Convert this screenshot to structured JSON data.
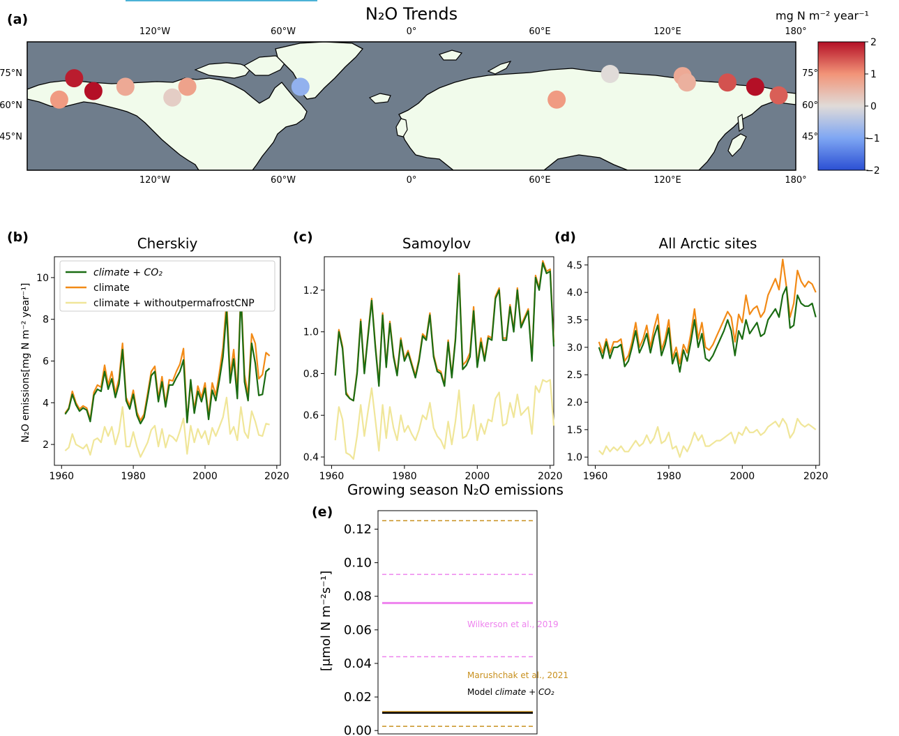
{
  "panel_a": {
    "letter": "(a)",
    "title": "N₂O Trends",
    "lon_labels": [
      "120°W",
      "60°W",
      "0°",
      "60°E",
      "120°E",
      "180°"
    ],
    "lat_labels_left": [
      "75°N",
      "60°N",
      "45°N"
    ],
    "lat_labels_right": [
      "75°",
      "60°",
      "45°"
    ],
    "colorbar_title": "mg N m⁻² year⁻¹",
    "colorbar_ticks": [
      "2",
      "1",
      "0",
      "−1",
      "−2"
    ],
    "colors": {
      "ocean": "#6f7d8c",
      "land": "#f1fbeb"
    }
  },
  "chart_data": [
    {
      "id": "cherskiy",
      "type": "line",
      "letter": "(b)",
      "title": "Cherskiy",
      "ylabel": "N₂O emissions[mg N m⁻² year⁻¹]",
      "xlim": [
        1958,
        2021
      ],
      "ylim": [
        1.0,
        11.0
      ],
      "xticks": [
        1960,
        1980,
        2000,
        2020
      ],
      "yticks": [
        2,
        4,
        6,
        8,
        10
      ],
      "legend": {
        "placement": "top-left",
        "entries": [
          "climate + CO₂",
          "climate",
          "climate + withoutpermafrostCNP"
        ]
      },
      "x_start": 1961,
      "series": [
        {
          "name": "climate + CO₂",
          "color": "#1a6b12",
          "values": [
            3.45,
            3.7,
            4.4,
            3.9,
            3.6,
            3.75,
            3.65,
            3.1,
            4.35,
            4.65,
            4.55,
            5.5,
            4.65,
            5.15,
            4.25,
            4.9,
            6.55,
            4.1,
            3.7,
            4.4,
            3.4,
            3.0,
            3.3,
            4.25,
            5.3,
            5.5,
            4.05,
            5.0,
            3.8,
            4.85,
            4.85,
            5.2,
            5.5,
            6.05,
            3.05,
            5.1,
            3.5,
            4.55,
            4.05,
            4.7,
            3.2,
            4.6,
            4.1,
            5.1,
            6.2,
            8.4,
            4.95,
            6.1,
            4.2,
            9.2,
            5.0,
            4.1,
            6.85,
            5.9,
            4.35,
            4.4,
            5.5,
            5.65
          ]
        },
        {
          "name": "climate",
          "color": "#f28a16",
          "values": [
            3.5,
            3.75,
            4.55,
            4.0,
            3.7,
            3.85,
            3.75,
            3.2,
            4.5,
            4.85,
            4.75,
            5.8,
            4.85,
            5.5,
            4.45,
            5.15,
            6.85,
            4.25,
            3.85,
            4.6,
            3.55,
            3.15,
            3.45,
            4.45,
            5.5,
            5.75,
            4.2,
            5.25,
            3.95,
            5.1,
            5.05,
            5.5,
            5.85,
            6.6,
            3.15,
            4.9,
            3.7,
            4.8,
            4.25,
            4.95,
            3.35,
            4.95,
            4.35,
            5.45,
            6.65,
            8.9,
            5.25,
            6.55,
            4.5,
            9.4,
            5.35,
            4.35,
            7.3,
            6.85,
            5.15,
            5.35,
            6.4,
            6.25
          ]
        },
        {
          "name": "climate + withoutpermafrostCNP",
          "color": "#f0e699",
          "values": [
            1.7,
            1.85,
            2.5,
            2.0,
            1.9,
            1.8,
            2.0,
            1.5,
            2.2,
            2.3,
            2.1,
            2.85,
            2.4,
            2.85,
            2.0,
            2.6,
            3.8,
            1.9,
            1.9,
            2.6,
            1.9,
            1.4,
            1.75,
            2.1,
            2.7,
            2.9,
            1.9,
            2.75,
            1.85,
            2.45,
            2.35,
            2.15,
            2.65,
            3.25,
            1.55,
            2.9,
            2.1,
            2.75,
            2.3,
            2.65,
            2.0,
            2.8,
            2.4,
            2.85,
            3.3,
            4.25,
            2.5,
            2.85,
            2.2,
            3.8,
            2.6,
            2.3,
            3.6,
            3.1,
            2.45,
            2.4,
            3.0,
            2.95
          ]
        }
      ]
    },
    {
      "id": "samoylov",
      "type": "line",
      "letter": "(c)",
      "title": "Samoylov",
      "xlim": [
        1958,
        2021
      ],
      "ylim": [
        0.36,
        1.36
      ],
      "xticks": [
        1960,
        1980,
        2000,
        2020
      ],
      "yticks": [
        0.4,
        0.6,
        0.8,
        1.0,
        1.2
      ],
      "x_start": 1961,
      "series": [
        {
          "name": "climate + CO₂",
          "color": "#1a6b12",
          "values": [
            0.79,
            1.0,
            0.92,
            0.7,
            0.68,
            0.67,
            0.8,
            1.05,
            0.8,
            0.98,
            1.15,
            0.93,
            0.74,
            1.08,
            0.83,
            1.04,
            0.88,
            0.79,
            0.96,
            0.86,
            0.9,
            0.84,
            0.78,
            0.86,
            0.98,
            0.96,
            1.08,
            0.88,
            0.81,
            0.8,
            0.74,
            0.95,
            0.78,
            0.96,
            1.27,
            0.82,
            0.84,
            0.88,
            1.1,
            0.83,
            0.95,
            0.86,
            0.97,
            0.96,
            1.16,
            1.2,
            0.96,
            0.96,
            1.12,
            1.0,
            1.2,
            1.02,
            1.06,
            1.1,
            0.86,
            1.26,
            1.2,
            1.33,
            1.28,
            1.29,
            0.93
          ]
        },
        {
          "name": "climate",
          "color": "#f28a16",
          "values": [
            0.8,
            1.01,
            0.93,
            0.71,
            0.68,
            0.67,
            0.81,
            1.06,
            0.81,
            0.99,
            1.16,
            0.94,
            0.75,
            1.09,
            0.84,
            1.05,
            0.89,
            0.8,
            0.97,
            0.87,
            0.91,
            0.85,
            0.79,
            0.87,
            0.99,
            0.97,
            1.09,
            0.89,
            0.82,
            0.81,
            0.75,
            0.96,
            0.79,
            0.97,
            1.28,
            0.84,
            0.86,
            0.9,
            1.12,
            0.84,
            0.97,
            0.87,
            0.98,
            0.97,
            1.17,
            1.21,
            0.97,
            0.97,
            1.13,
            1.01,
            1.21,
            1.03,
            1.07,
            1.11,
            0.87,
            1.27,
            1.21,
            1.34,
            1.29,
            1.3,
            0.95
          ]
        },
        {
          "name": "climate + withoutpermafrostCNP",
          "color": "#f0e699",
          "values": [
            0.48,
            0.64,
            0.58,
            0.42,
            0.41,
            0.39,
            0.5,
            0.65,
            0.5,
            0.62,
            0.73,
            0.58,
            0.43,
            0.65,
            0.49,
            0.64,
            0.54,
            0.48,
            0.6,
            0.52,
            0.55,
            0.51,
            0.48,
            0.53,
            0.6,
            0.58,
            0.66,
            0.54,
            0.5,
            0.48,
            0.44,
            0.57,
            0.46,
            0.57,
            0.72,
            0.49,
            0.5,
            0.54,
            0.65,
            0.48,
            0.56,
            0.51,
            0.58,
            0.57,
            0.68,
            0.71,
            0.55,
            0.56,
            0.66,
            0.59,
            0.7,
            0.6,
            0.62,
            0.64,
            0.51,
            0.74,
            0.71,
            0.77,
            0.76,
            0.77,
            0.55
          ]
        }
      ]
    },
    {
      "id": "all_arctic",
      "type": "line",
      "letter": "(d)",
      "title": "All Arctic sites",
      "xlim": [
        1958,
        2021
      ],
      "ylim": [
        0.85,
        4.65
      ],
      "xticks": [
        1960,
        1980,
        2000,
        2020
      ],
      "yticks": [
        1.0,
        1.5,
        2.0,
        2.5,
        3.0,
        3.5,
        4.0,
        4.5
      ],
      "x_start": 1961,
      "series": [
        {
          "name": "climate + CO₂",
          "color": "#1a6b12",
          "values": [
            3.0,
            2.8,
            3.1,
            2.8,
            3.0,
            3.0,
            3.05,
            2.65,
            2.75,
            3.0,
            3.3,
            2.9,
            3.05,
            3.25,
            2.9,
            3.2,
            3.4,
            2.85,
            3.05,
            3.35,
            2.7,
            2.9,
            2.55,
            2.95,
            2.75,
            3.1,
            3.5,
            3.0,
            3.25,
            2.8,
            2.75,
            2.85,
            3.0,
            3.15,
            3.3,
            3.5,
            3.3,
            2.85,
            3.3,
            3.15,
            3.5,
            3.25,
            3.35,
            3.45,
            3.2,
            3.25,
            3.5,
            3.6,
            3.7,
            3.55,
            3.95,
            4.1,
            3.35,
            3.4,
            3.95,
            3.8,
            3.75,
            3.75,
            3.8,
            3.55
          ]
        },
        {
          "name": "climate",
          "color": "#f28a16",
          "values": [
            3.1,
            2.9,
            3.15,
            2.9,
            3.1,
            3.1,
            3.15,
            2.75,
            2.85,
            3.1,
            3.45,
            3.0,
            3.15,
            3.4,
            3.0,
            3.35,
            3.6,
            2.95,
            3.15,
            3.5,
            2.8,
            3.0,
            2.7,
            3.05,
            2.9,
            3.25,
            3.7,
            3.15,
            3.45,
            3.0,
            2.95,
            3.05,
            3.2,
            3.35,
            3.5,
            3.65,
            3.55,
            3.1,
            3.6,
            3.45,
            3.95,
            3.6,
            3.7,
            3.75,
            3.55,
            3.65,
            3.95,
            4.1,
            4.25,
            4.05,
            4.6,
            4.1,
            3.55,
            3.8,
            4.4,
            4.2,
            4.1,
            4.2,
            4.15,
            4.0
          ]
        },
        {
          "name": "climate + withoutpermafrostCNP",
          "color": "#f0e699",
          "values": [
            1.12,
            1.05,
            1.2,
            1.1,
            1.18,
            1.12,
            1.2,
            1.1,
            1.1,
            1.2,
            1.3,
            1.2,
            1.25,
            1.4,
            1.25,
            1.35,
            1.55,
            1.25,
            1.3,
            1.45,
            1.15,
            1.2,
            1.0,
            1.2,
            1.1,
            1.25,
            1.45,
            1.3,
            1.4,
            1.2,
            1.2,
            1.25,
            1.3,
            1.3,
            1.35,
            1.4,
            1.45,
            1.25,
            1.45,
            1.4,
            1.55,
            1.45,
            1.45,
            1.5,
            1.4,
            1.45,
            1.55,
            1.6,
            1.65,
            1.55,
            1.7,
            1.6,
            1.35,
            1.45,
            1.7,
            1.6,
            1.55,
            1.6,
            1.55,
            1.5
          ]
        }
      ]
    },
    {
      "id": "growing_season",
      "type": "line",
      "letter": "(e)",
      "title": "Growing season N₂O emissions",
      "ylabel": "[μmol N m⁻²s⁻¹]",
      "ylim": [
        -0.002,
        0.131
      ],
      "yticks": [
        "0.00",
        "0.02",
        "0.04",
        "0.06",
        "0.08",
        "0.10",
        "0.12"
      ],
      "reference_lines": [
        {
          "label": "Wilkerson et al., 2019",
          "color": "#ee82ee",
          "mean": 0.076,
          "low": 0.044,
          "high": 0.093
        },
        {
          "label": "Marushchak et al., 2021",
          "color": "#c8901e",
          "mean": 0.011,
          "low": 0.0025,
          "high": 0.125
        },
        {
          "label": "Model climate + CO₂",
          "color": "#000000",
          "mean": 0.0105
        }
      ],
      "annotations": [
        "Wilkerson et al., 2019",
        "Marushchak et al., 2021",
        "Model",
        "climate + CO₂"
      ]
    }
  ],
  "sites": [
    {
      "lon": -165,
      "lat": 63,
      "trend": 0.9
    },
    {
      "lon": -158,
      "lat": 73,
      "trend": 1.9
    },
    {
      "lon": -149,
      "lat": 67,
      "trend": 2.0
    },
    {
      "lon": -134,
      "lat": 69,
      "trend": 0.7
    },
    {
      "lon": -112,
      "lat": 64,
      "trend": 0.2
    },
    {
      "lon": -105,
      "lat": 69,
      "trend": 0.8
    },
    {
      "lon": -52,
      "lat": 69,
      "trend": -0.8
    },
    {
      "lon": 68,
      "lat": 63,
      "trend": 0.9
    },
    {
      "lon": 93,
      "lat": 75,
      "trend": 0.0
    },
    {
      "lon": 127,
      "lat": 74,
      "trend": 0.7
    },
    {
      "lon": 129,
      "lat": 71,
      "trend": 0.6
    },
    {
      "lon": 148,
      "lat": 71,
      "trend": 1.5
    },
    {
      "lon": 161,
      "lat": 69,
      "trend": 2.0
    },
    {
      "lon": 172,
      "lat": 65,
      "trend": 1.4
    }
  ]
}
